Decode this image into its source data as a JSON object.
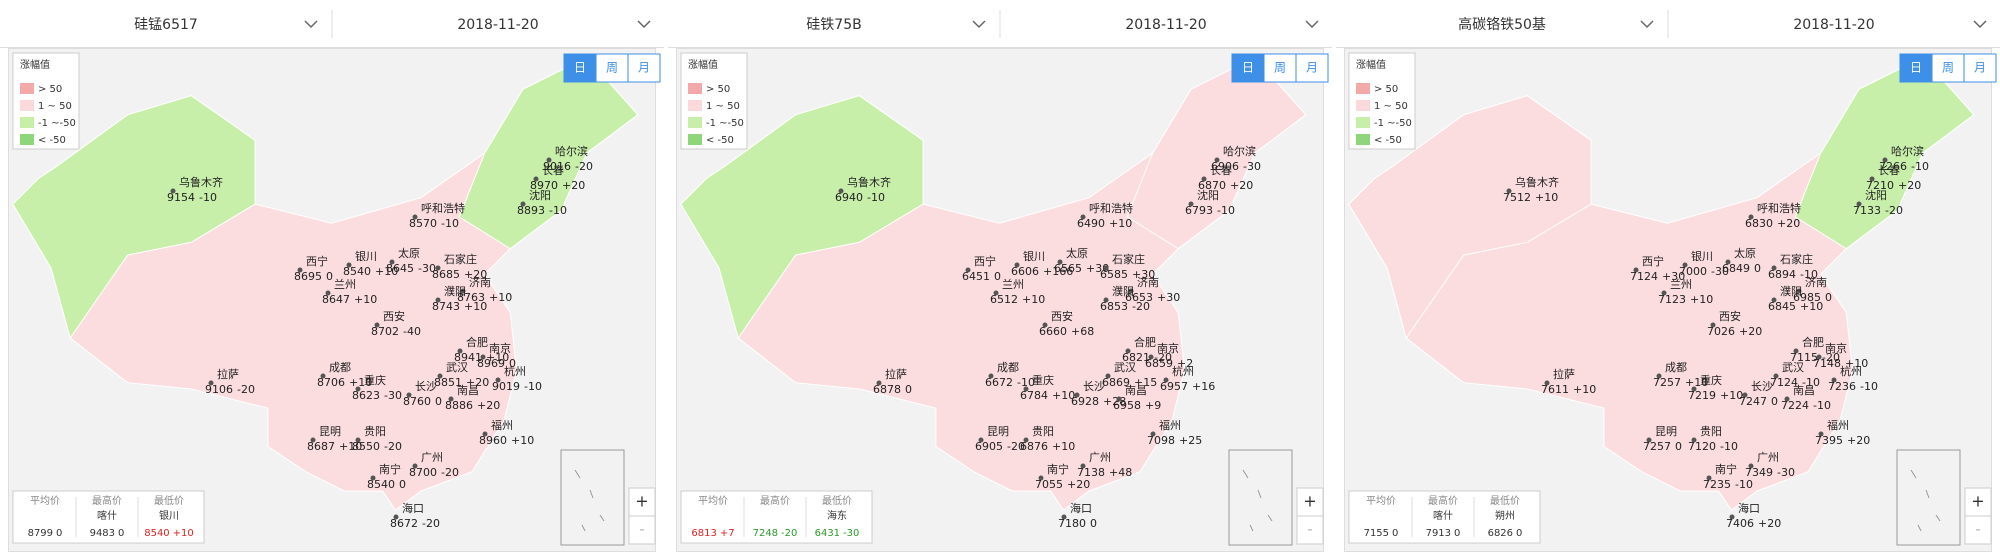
{
  "zoom": [
    "+",
    "-"
  ],
  "panels": [
    {
      "product": "硅锰6517",
      "date": "2018-11-20",
      "legend": {
        "title": "涨幅值",
        "items": [
          "> 50",
          "1 ~ 50",
          "-1 ~-50",
          "< -50"
        ]
      },
      "periods": [
        "日",
        "周",
        "月"
      ],
      "cities": [
        {
          "name": "乌鲁木齐",
          "price": 9154,
          "change": "-10"
        },
        {
          "name": "哈尔滨",
          "price": 9016,
          "change": "-20"
        },
        {
          "name": "长春",
          "price": 8970,
          "change": "+20"
        },
        {
          "name": "沈阳",
          "price": 8893,
          "change": "-10"
        },
        {
          "name": "呼和浩特",
          "price": 8570,
          "change": "-10"
        },
        {
          "name": "银川",
          "price": 8540,
          "change": "+10"
        },
        {
          "name": "西宁",
          "price": 8695,
          "change": "0"
        },
        {
          "name": "兰州",
          "price": 8647,
          "change": "+10"
        },
        {
          "name": "太原",
          "price": 8645,
          "change": "-30"
        },
        {
          "name": "石家庄",
          "price": 8685,
          "change": "+20"
        },
        {
          "name": "济南",
          "price": 8763,
          "change": "+10"
        },
        {
          "name": "濮阳",
          "price": 8743,
          "change": "+10"
        },
        {
          "name": "西安",
          "price": 8702,
          "change": "-40"
        },
        {
          "name": "合肥",
          "price": 8941,
          "change": "+10"
        },
        {
          "name": "南京",
          "price": 8969,
          "change": "0"
        },
        {
          "name": "武汉",
          "price": 8851,
          "change": "+20"
        },
        {
          "name": "杭州",
          "price": 9019,
          "change": "-10"
        },
        {
          "name": "成都",
          "price": 8706,
          "change": "+10"
        },
        {
          "name": "重庆",
          "price": 8623,
          "change": "-30"
        },
        {
          "name": "长沙",
          "price": 8760,
          "change": "0"
        },
        {
          "name": "南昌",
          "price": 8886,
          "change": "+20"
        },
        {
          "name": "福州",
          "price": 8960,
          "change": "+10"
        },
        {
          "name": "贵阳",
          "price": 8550,
          "change": "-20"
        },
        {
          "name": "昆明",
          "price": 8687,
          "change": "+10"
        },
        {
          "name": "广州",
          "price": 8700,
          "change": "-20"
        },
        {
          "name": "南宁",
          "price": 8540,
          "change": "0"
        },
        {
          "name": "海口",
          "price": 8672,
          "change": "-20"
        },
        {
          "name": "拉萨",
          "price": 9106,
          "change": "-20"
        }
      ],
      "summary": [
        {
          "label": "平均价",
          "price": 8799,
          "change": "0"
        },
        {
          "label": "最高价",
          "city": "喀什",
          "price": 9483,
          "change": "0"
        },
        {
          "label": "最低价",
          "city": "银川",
          "price": 8540,
          "change": "+10"
        }
      ]
    },
    {
      "product": "硅铁75B",
      "date": "2018-11-20",
      "legend": {
        "title": "涨幅值",
        "items": [
          "> 50",
          "1 ~ 50",
          "-1 ~-50",
          "< -50"
        ]
      },
      "periods": [
        "日",
        "周",
        "月"
      ],
      "cities": [
        {
          "name": "乌鲁木齐",
          "price": 6940,
          "change": "-10"
        },
        {
          "name": "哈尔滨",
          "price": 6906,
          "change": "-30"
        },
        {
          "name": "长春",
          "price": 6870,
          "change": "+20"
        },
        {
          "name": "沈阳",
          "price": 6793,
          "change": "-10"
        },
        {
          "name": "呼和浩特",
          "price": 6490,
          "change": "+10"
        },
        {
          "name": "银川",
          "price": 6606,
          "change": "+166"
        },
        {
          "name": "西宁",
          "price": 6451,
          "change": "0"
        },
        {
          "name": "兰州",
          "price": 6512,
          "change": "+10"
        },
        {
          "name": "太原",
          "price": 6565,
          "change": "+30"
        },
        {
          "name": "石家庄",
          "price": 6585,
          "change": "+30"
        },
        {
          "name": "济南",
          "price": 6653,
          "change": "+30"
        },
        {
          "name": "濮阳",
          "price": 6853,
          "change": "-20"
        },
        {
          "name": "西安",
          "price": 6660,
          "change": "+68"
        },
        {
          "name": "合肥",
          "price": 6821,
          "change": "-20"
        },
        {
          "name": "南京",
          "price": 6859,
          "change": "+2"
        },
        {
          "name": "武汉",
          "price": 6869,
          "change": "+15"
        },
        {
          "name": "杭州",
          "price": 6957,
          "change": "+16"
        },
        {
          "name": "成都",
          "price": 6672,
          "change": "-10"
        },
        {
          "name": "重庆",
          "price": 6784,
          "change": "+10"
        },
        {
          "name": "长沙",
          "price": 6928,
          "change": "+28"
        },
        {
          "name": "南昌",
          "price": 6958,
          "change": "+9"
        },
        {
          "name": "福州",
          "price": 7098,
          "change": "+25"
        },
        {
          "name": "贵阳",
          "price": 6876,
          "change": "+10"
        },
        {
          "name": "昆明",
          "price": 6905,
          "change": "-20"
        },
        {
          "name": "广州",
          "price": 7138,
          "change": "+48"
        },
        {
          "name": "南宁",
          "price": 7055,
          "change": "+20"
        },
        {
          "name": "海口",
          "price": 7180,
          "change": "0"
        },
        {
          "name": "拉萨",
          "price": 6878,
          "change": "0"
        }
      ],
      "summary": [
        {
          "label": "平均价",
          "price": 6813,
          "change": "+7"
        },
        {
          "label": "最高价",
          "price": 7248,
          "change": "-20"
        },
        {
          "label": "最低价",
          "city": "海东",
          "price": 6431,
          "change": "-30"
        }
      ]
    },
    {
      "product": "高碳铬铁50基",
      "date": "2018-11-20",
      "legend": {
        "title": "涨幅值",
        "items": [
          "> 50",
          "1 ~ 50",
          "-1 ~-50",
          "< -50"
        ]
      },
      "periods": [
        "日",
        "周",
        "月"
      ],
      "cities": [
        {
          "name": "乌鲁木齐",
          "price": 7512,
          "change": "+10"
        },
        {
          "name": "哈尔滨",
          "price": 7266,
          "change": "-10"
        },
        {
          "name": "长春",
          "price": 7210,
          "change": "+20"
        },
        {
          "name": "沈阳",
          "price": 7133,
          "change": "-20"
        },
        {
          "name": "呼和浩特",
          "price": 6830,
          "change": "+20"
        },
        {
          "name": "银川",
          "price": 7000,
          "change": "-30"
        },
        {
          "name": "西宁",
          "price": 7124,
          "change": "+30"
        },
        {
          "name": "兰州",
          "price": 7123,
          "change": "+10"
        },
        {
          "name": "太原",
          "price": 6849,
          "change": "0"
        },
        {
          "name": "石家庄",
          "price": 6894,
          "change": "-10"
        },
        {
          "name": "济南",
          "price": 6985,
          "change": "0"
        },
        {
          "name": "濮阳",
          "price": 6845,
          "change": "+10"
        },
        {
          "name": "西安",
          "price": 7026,
          "change": "+20"
        },
        {
          "name": "合肥",
          "price": 7115,
          "change": "-20"
        },
        {
          "name": "南京",
          "price": 7148,
          "change": "+10"
        },
        {
          "name": "武汉",
          "price": 7124,
          "change": "-10"
        },
        {
          "name": "杭州",
          "price": 7236,
          "change": "-10"
        },
        {
          "name": "成都",
          "price": 7257,
          "change": "+10"
        },
        {
          "name": "重庆",
          "price": 7219,
          "change": "+10"
        },
        {
          "name": "长沙",
          "price": 7247,
          "change": "0"
        },
        {
          "name": "南昌",
          "price": 7224,
          "change": "-10"
        },
        {
          "name": "福州",
          "price": 7395,
          "change": "+20"
        },
        {
          "name": "贵阳",
          "price": 7120,
          "change": "-10"
        },
        {
          "name": "昆明",
          "price": 7257,
          "change": "0"
        },
        {
          "name": "广州",
          "price": 7349,
          "change": "-30"
        },
        {
          "name": "南宁",
          "price": 7235,
          "change": "-10"
        },
        {
          "name": "海口",
          "price": 7406,
          "change": "+20"
        },
        {
          "name": "拉萨",
          "price": 7611,
          "change": "+10"
        }
      ],
      "summary": [
        {
          "label": "平均价",
          "price": 7155,
          "change": "0"
        },
        {
          "label": "最高价",
          "city": "喀什",
          "price": 7913,
          "change": "0"
        },
        {
          "label": "最低价",
          "city": "朔州",
          "price": 6826,
          "change": "0"
        }
      ]
    }
  ]
}
